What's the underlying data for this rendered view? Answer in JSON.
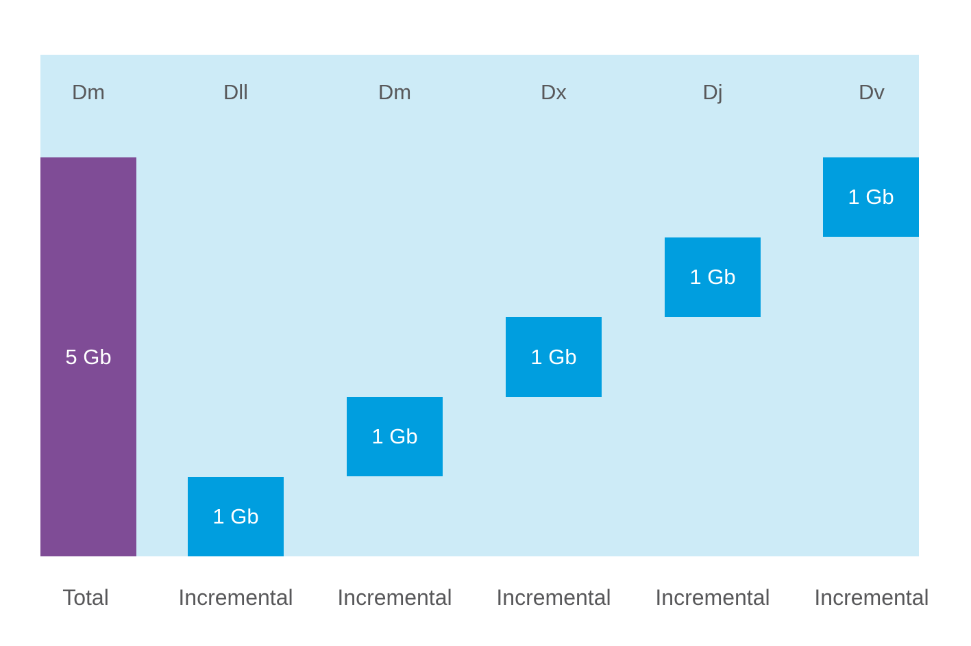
{
  "colors": {
    "panel_background": "#cdebf7",
    "total_block": "#7f4c96",
    "incremental_block": "#009edf",
    "label_text": "#58585a",
    "block_text": "#ffffff"
  },
  "columns": [
    {
      "day": "Dm",
      "size": "5 Gb",
      "type": "Total"
    },
    {
      "day": "Dll",
      "size": "1 Gb",
      "type": "Incremental"
    },
    {
      "day": "Dm",
      "size": "1 Gb",
      "type": "Incremental"
    },
    {
      "day": "Dx",
      "size": "1 Gb",
      "type": "Incremental"
    },
    {
      "day": "Dj",
      "size": "1 Gb",
      "type": "Incremental"
    },
    {
      "day": "Dv",
      "size": "1 Gb",
      "type": "Incremental"
    }
  ]
}
